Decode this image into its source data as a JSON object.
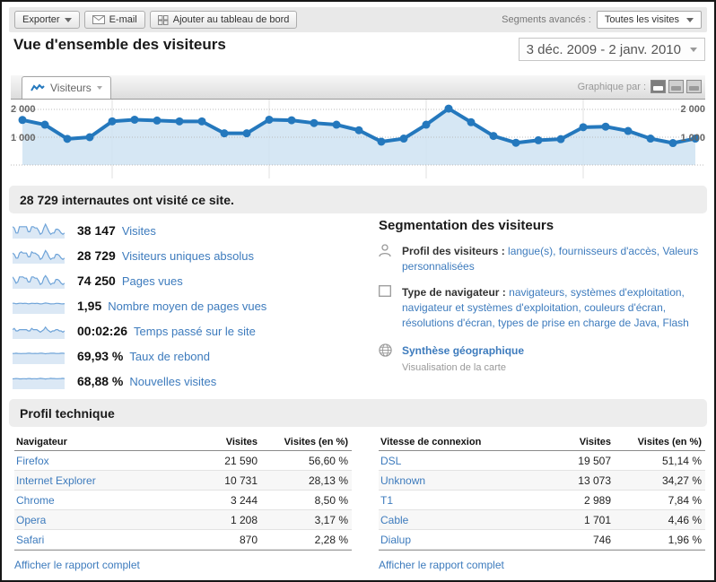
{
  "toolbar": {
    "export_label": "Exporter",
    "email_label": "E-mail",
    "add_dashboard_label": "Ajouter au tableau de bord",
    "segments_label": "Segments avancés :",
    "segments_value": "Toutes les visites"
  },
  "header": {
    "title": "Vue d'ensemble des visiteurs",
    "date_range": "3 déc. 2009 - 2 janv. 2010"
  },
  "chart": {
    "tab_label": "Visiteurs",
    "graph_by_label": "Graphique par :",
    "y_top_label": "2 000",
    "y_mid_label": "1 000"
  },
  "chart_data": {
    "type": "line",
    "title": "Visiteurs",
    "date_range": "3 déc. 2009 - 2 janv. 2010",
    "x_start": "3 déc. 2009",
    "x_end": "2 janv. 2010",
    "values": [
      1620,
      1450,
      940,
      1000,
      1570,
      1630,
      1600,
      1570,
      1570,
      1140,
      1140,
      1630,
      1610,
      1510,
      1450,
      1250,
      840,
      950,
      1450,
      2030,
      1540,
      1045,
      800,
      890,
      930,
      1360,
      1380,
      1225,
      950,
      790,
      950
    ],
    "ylim": [
      0,
      2200
    ],
    "y_gridlines": [
      1000,
      2000
    ],
    "week_gridline_indices": [
      4,
      11,
      18,
      25
    ],
    "line_color": "#2478bd",
    "area_color": "#cfe3f2"
  },
  "banner": {
    "text": "28 729 internautes ont visité ce site."
  },
  "metrics": [
    {
      "value": "38 147",
      "label": "Visites",
      "spark": [
        8,
        7,
        3,
        3,
        8,
        8,
        8,
        8,
        8,
        4,
        4,
        8,
        8,
        7,
        7,
        5,
        2,
        3,
        7,
        10,
        7,
        4,
        2,
        3,
        3,
        6,
        6,
        5,
        3,
        2,
        3
      ]
    },
    {
      "value": "28 729",
      "label": "Visiteurs uniques absolus",
      "spark": [
        7,
        6,
        3,
        3,
        7,
        8,
        7,
        7,
        7,
        4,
        4,
        8,
        7,
        7,
        6,
        5,
        2,
        3,
        6,
        9,
        7,
        4,
        2,
        3,
        3,
        6,
        6,
        5,
        3,
        2,
        3
      ]
    },
    {
      "value": "74 250",
      "label": "Pages vues",
      "spark": [
        8,
        6,
        3,
        4,
        8,
        8,
        8,
        7,
        7,
        4,
        4,
        8,
        8,
        7,
        7,
        5,
        2,
        3,
        7,
        9,
        7,
        4,
        2,
        3,
        3,
        6,
        6,
        5,
        3,
        2,
        3
      ]
    },
    {
      "value": "1,95",
      "label": "Nombre moyen de pages vues",
      "spark": [
        7,
        7,
        6.6,
        6.8,
        7,
        7,
        6.8,
        7,
        6.9,
        6.6,
        6.7,
        7,
        6.9,
        6.8,
        7,
        6.8,
        6.5,
        6.6,
        6.9,
        7.2,
        7,
        6.8,
        6.5,
        6.6,
        6.6,
        6.9,
        6.9,
        6.8,
        6.6,
        6.5,
        6.7
      ]
    },
    {
      "value": "00:02:26",
      "label": "Temps passé sur le site",
      "spark": [
        6,
        7,
        5,
        5,
        6,
        6,
        6,
        6,
        6,
        5,
        5,
        7,
        6,
        6,
        6,
        5,
        4,
        5,
        6,
        8,
        6,
        5,
        4,
        5,
        5,
        6,
        6,
        5,
        5,
        4,
        5
      ]
    },
    {
      "value": "69,93 %",
      "label": "Taux de rebond",
      "spark": [
        7,
        7,
        7.2,
        7.1,
        7,
        6.9,
        7,
        7,
        7.1,
        7.3,
        7.2,
        7,
        7,
        7.1,
        7,
        7.1,
        7.3,
        7.2,
        7,
        6.8,
        7,
        7.1,
        7.3,
        7.2,
        7.2,
        7,
        7,
        7.1,
        7.2,
        7.3,
        7.1
      ]
    },
    {
      "value": "68,88 %",
      "label": "Nouvelles visites",
      "spark": [
        6.8,
        6.9,
        7.1,
        7,
        6.8,
        6.8,
        6.9,
        6.9,
        6.8,
        7.1,
        7.1,
        6.8,
        6.9,
        6.9,
        6.8,
        7,
        7.2,
        7.1,
        6.9,
        6.7,
        6.9,
        7,
        7.2,
        7.1,
        7.1,
        6.9,
        6.9,
        7,
        7.1,
        7.2,
        7
      ]
    }
  ],
  "segmentation": {
    "title": "Segmentation des visiteurs",
    "rows": [
      {
        "icon": "person-icon",
        "label": "Profil des visiteurs :",
        "links": [
          "langue(s),",
          "fournisseurs d'accès,",
          "Valeurs personnalisées"
        ]
      },
      {
        "icon": "monitor-icon",
        "label": "Type de navigateur :",
        "links": [
          "navigateurs,",
          "systèmes d'exploitation,",
          "navigateur et systèmes d'exploitation,",
          "couleurs d'écran,",
          "résolutions d'écran,",
          "types de prise en charge de Java,",
          "Flash"
        ]
      }
    ],
    "geo": {
      "title": "Synthèse géographique",
      "subtitle": "Visualisation de la carte"
    }
  },
  "technical": {
    "title": "Profil technique",
    "tables": [
      {
        "name": "browser-table",
        "columns": [
          "Navigateur",
          "Visites",
          "Visites (en %)"
        ],
        "rows": [
          [
            "Firefox",
            "21 590",
            "56,60 %"
          ],
          [
            "Internet Explorer",
            "10 731",
            "28,13 %"
          ],
          [
            "Chrome",
            "3 244",
            "8,50 %"
          ],
          [
            "Opera",
            "1 208",
            "3,17 %"
          ],
          [
            "Safari",
            "870",
            "2,28 %"
          ]
        ],
        "footer_link": "Afficher le rapport complet"
      },
      {
        "name": "connection-speed-table",
        "columns": [
          "Vitesse de connexion",
          "Visites",
          "Visites (en %)"
        ],
        "rows": [
          [
            "DSL",
            "19 507",
            "51,14 %"
          ],
          [
            "Unknown",
            "13 073",
            "34,27 %"
          ],
          [
            "T1",
            "2 989",
            "7,84 %"
          ],
          [
            "Cable",
            "1 701",
            "4,46 %"
          ],
          [
            "Dialup",
            "746",
            "1,96 %"
          ]
        ],
        "footer_link": "Afficher le rapport complet"
      }
    ]
  },
  "colors": {
    "link_blue": "#3d7bbd",
    "chart_line": "#2478bd",
    "chart_area": "#cfe3f2",
    "spark_line": "#6ea3d8",
    "spark_area": "#dbe8f5",
    "bar_gray": "#ededed"
  }
}
